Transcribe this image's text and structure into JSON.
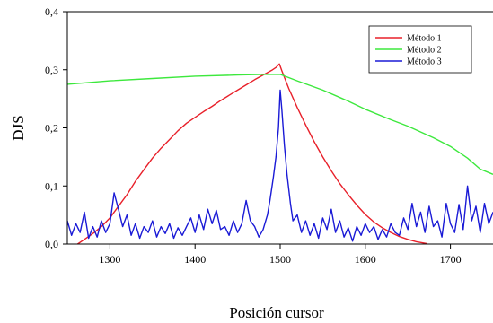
{
  "chart_data": {
    "type": "line",
    "title": "",
    "xlabel": "Posición cursor",
    "ylabel": "DJS",
    "xlim": [
      1250,
      1750
    ],
    "ylim": [
      0.0,
      0.4
    ],
    "x_ticks": [
      1300,
      1400,
      1500,
      1600,
      1700
    ],
    "x_tick_labels": [
      "1300",
      "1400",
      "1500",
      "1600",
      "1700"
    ],
    "y_ticks": [
      0.0,
      0.1,
      0.2,
      0.3,
      0.4
    ],
    "y_tick_labels": [
      "0,0",
      "0,1",
      "0,2",
      "0,3",
      "0,4"
    ],
    "grid": false,
    "legend_position": "top-right",
    "series": [
      {
        "name": "Método 1",
        "color": "#e8202a",
        "x": [
          1262,
          1270,
          1280,
          1290,
          1300,
          1310,
          1320,
          1330,
          1340,
          1350,
          1360,
          1370,
          1380,
          1390,
          1400,
          1410,
          1420,
          1430,
          1440,
          1450,
          1460,
          1470,
          1480,
          1490,
          1495,
          1499,
          1502,
          1510,
          1520,
          1530,
          1540,
          1550,
          1560,
          1570,
          1580,
          1590,
          1600,
          1610,
          1620,
          1630,
          1640,
          1650,
          1660,
          1672
        ],
        "y": [
          0.0,
          0.008,
          0.018,
          0.03,
          0.045,
          0.065,
          0.085,
          0.108,
          0.128,
          0.148,
          0.165,
          0.18,
          0.195,
          0.208,
          0.218,
          0.228,
          0.237,
          0.247,
          0.256,
          0.265,
          0.274,
          0.283,
          0.291,
          0.299,
          0.304,
          0.31,
          0.298,
          0.268,
          0.235,
          0.205,
          0.176,
          0.15,
          0.126,
          0.104,
          0.085,
          0.067,
          0.051,
          0.038,
          0.028,
          0.02,
          0.013,
          0.008,
          0.004,
          0.001
        ]
      },
      {
        "name": "Método 2",
        "color": "#3de83d",
        "x": [
          1250,
          1300,
          1350,
          1400,
          1450,
          1480,
          1500,
          1520,
          1550,
          1580,
          1600,
          1630,
          1650,
          1680,
          1700,
          1720,
          1735,
          1750
        ],
        "y": [
          0.275,
          0.281,
          0.285,
          0.289,
          0.291,
          0.292,
          0.292,
          0.281,
          0.265,
          0.246,
          0.232,
          0.214,
          0.203,
          0.183,
          0.168,
          0.148,
          0.129,
          0.12
        ]
      },
      {
        "name": "Método 3",
        "color": "#1a1ad6",
        "x": [
          1250,
          1255,
          1260,
          1265,
          1270,
          1275,
          1280,
          1285,
          1290,
          1295,
          1300,
          1305,
          1310,
          1315,
          1320,
          1325,
          1330,
          1335,
          1340,
          1345,
          1350,
          1355,
          1360,
          1365,
          1370,
          1375,
          1380,
          1385,
          1390,
          1395,
          1400,
          1405,
          1410,
          1415,
          1420,
          1425,
          1430,
          1435,
          1440,
          1445,
          1450,
          1455,
          1460,
          1465,
          1470,
          1475,
          1480,
          1485,
          1488,
          1492,
          1495,
          1498,
          1500,
          1502,
          1505,
          1508,
          1512,
          1515,
          1520,
          1525,
          1530,
          1535,
          1540,
          1545,
          1550,
          1555,
          1560,
          1565,
          1570,
          1575,
          1580,
          1585,
          1590,
          1595,
          1600,
          1605,
          1610,
          1615,
          1620,
          1625,
          1630,
          1635,
          1640,
          1645,
          1650,
          1655,
          1660,
          1665,
          1670,
          1675,
          1680,
          1685,
          1690,
          1695,
          1700,
          1705,
          1710,
          1715,
          1720,
          1725,
          1730,
          1735,
          1740,
          1745,
          1750
        ],
        "y": [
          0.04,
          0.015,
          0.035,
          0.02,
          0.055,
          0.01,
          0.03,
          0.012,
          0.04,
          0.02,
          0.035,
          0.088,
          0.06,
          0.03,
          0.05,
          0.015,
          0.035,
          0.01,
          0.03,
          0.02,
          0.04,
          0.012,
          0.03,
          0.018,
          0.035,
          0.01,
          0.028,
          0.015,
          0.03,
          0.045,
          0.02,
          0.05,
          0.025,
          0.06,
          0.035,
          0.058,
          0.025,
          0.03,
          0.015,
          0.04,
          0.02,
          0.035,
          0.075,
          0.04,
          0.03,
          0.012,
          0.025,
          0.05,
          0.075,
          0.115,
          0.15,
          0.2,
          0.265,
          0.23,
          0.17,
          0.12,
          0.07,
          0.04,
          0.05,
          0.02,
          0.04,
          0.015,
          0.035,
          0.01,
          0.045,
          0.025,
          0.06,
          0.02,
          0.04,
          0.012,
          0.028,
          0.005,
          0.03,
          0.015,
          0.035,
          0.02,
          0.03,
          0.008,
          0.025,
          0.012,
          0.035,
          0.02,
          0.015,
          0.045,
          0.025,
          0.07,
          0.03,
          0.055,
          0.02,
          0.065,
          0.03,
          0.04,
          0.012,
          0.07,
          0.035,
          0.02,
          0.068,
          0.025,
          0.1,
          0.04,
          0.065,
          0.02,
          0.07,
          0.035,
          0.055
        ]
      }
    ]
  }
}
